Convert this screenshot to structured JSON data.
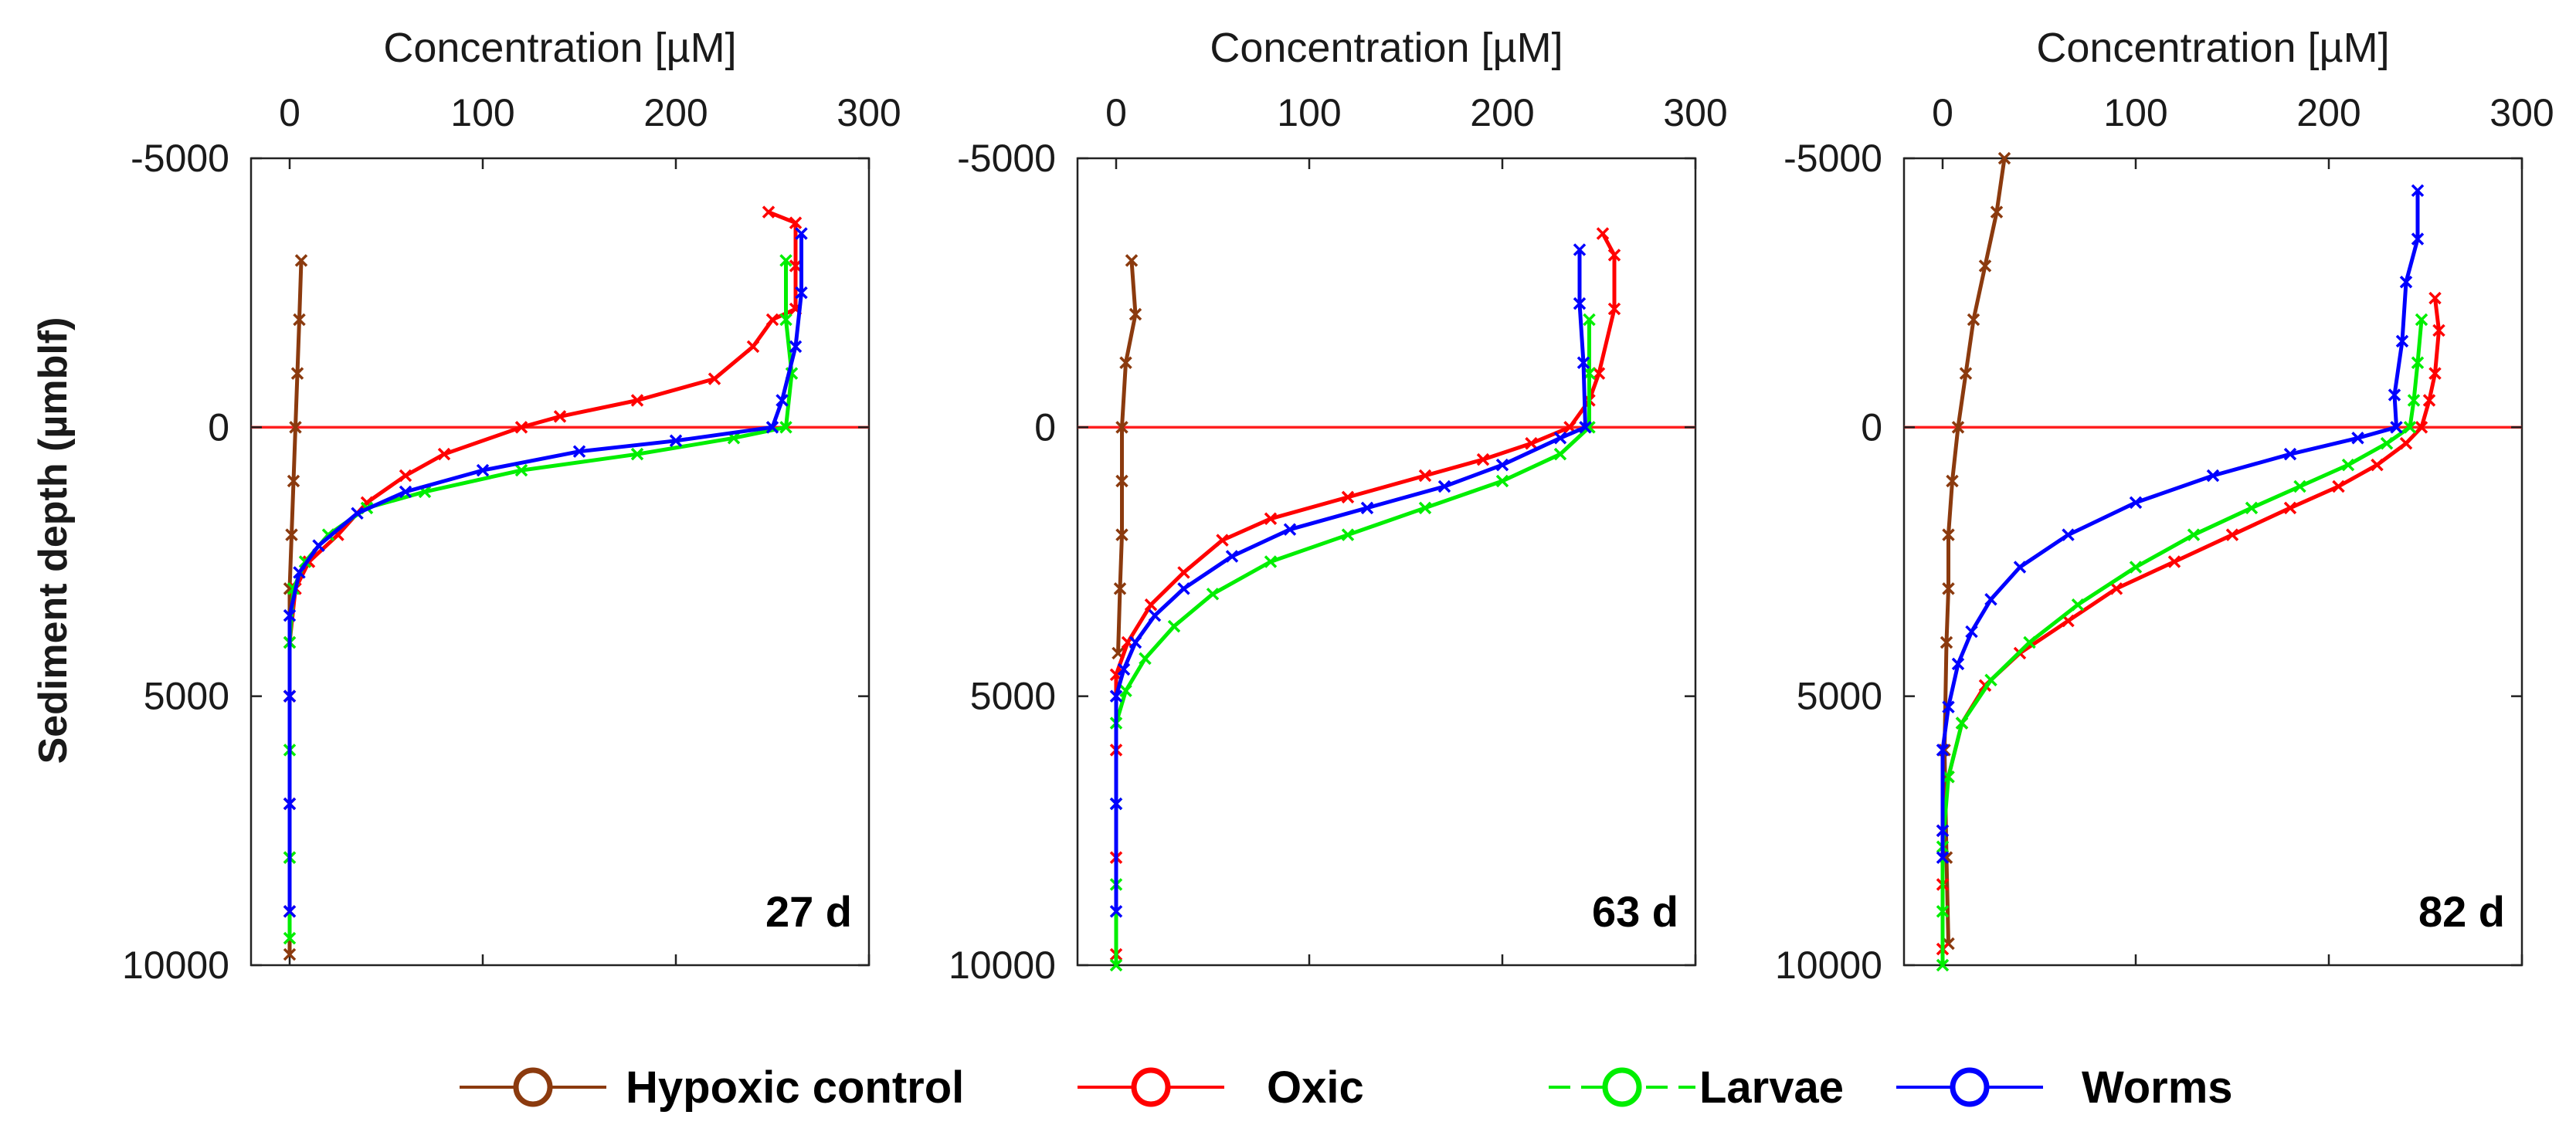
{
  "chart_data": {
    "type": "line",
    "ylabel": "Sediment depth (µmblf)",
    "xlabel": "Concentration [µM]",
    "xlim": [
      -20,
      300
    ],
    "ylim": [
      -5000,
      10000
    ],
    "y_inverted": true,
    "xticks": [
      0,
      100,
      200,
      300
    ],
    "yticks": [
      -5000,
      0,
      5000,
      10000
    ],
    "reference_line": {
      "y": 0,
      "color": "#ff2020"
    },
    "legend": {
      "position": "bottom",
      "entries": [
        {
          "name": "Hypoxic control",
          "color": "#8b3a0e",
          "style": "solid"
        },
        {
          "name": "Oxic",
          "color": "#ff0000",
          "style": "solid"
        },
        {
          "name": "Larvae",
          "color": "#00ee00",
          "style": "dashed"
        },
        {
          "name": "Worms",
          "color": "#0000ff",
          "style": "solid"
        }
      ]
    },
    "panels": [
      {
        "label": "27 d",
        "series": [
          {
            "name": "Hypoxic control",
            "color": "#8b3a0e",
            "points": [
              [
                6,
                -3100
              ],
              [
                5,
                -2000
              ],
              [
                4,
                -1000
              ],
              [
                3,
                0
              ],
              [
                2,
                1000
              ],
              [
                1,
                2000
              ],
              [
                0,
                3000
              ],
              [
                0,
                5000
              ],
              [
                0,
                8000
              ],
              [
                0,
                9800
              ]
            ]
          },
          {
            "name": "Oxic",
            "color": "#ff0000",
            "points": [
              [
                248,
                -4000
              ],
              [
                262,
                -3800
              ],
              [
                262,
                -3000
              ],
              [
                262,
                -2200
              ],
              [
                250,
                -2000
              ],
              [
                240,
                -1500
              ],
              [
                220,
                -900
              ],
              [
                180,
                -500
              ],
              [
                140,
                -200
              ],
              [
                120,
                0
              ],
              [
                80,
                500
              ],
              [
                60,
                900
              ],
              [
                40,
                1400
              ],
              [
                25,
                2000
              ],
              [
                10,
                2500
              ],
              [
                3,
                3000
              ],
              [
                0,
                4000
              ],
              [
                0,
                5000
              ],
              [
                0,
                7000
              ],
              [
                0,
                9000
              ]
            ]
          },
          {
            "name": "Larvae",
            "color": "#00ee00",
            "points": [
              [
                257,
                -3100
              ],
              [
                257,
                -2000
              ],
              [
                260,
                -1000
              ],
              [
                257,
                0
              ],
              [
                230,
                200
              ],
              [
                180,
                500
              ],
              [
                120,
                800
              ],
              [
                70,
                1200
              ],
              [
                40,
                1500
              ],
              [
                20,
                2000
              ],
              [
                8,
                2500
              ],
              [
                2,
                3000
              ],
              [
                0,
                4000
              ],
              [
                0,
                6000
              ],
              [
                0,
                8000
              ],
              [
                0,
                9500
              ]
            ]
          },
          {
            "name": "Worms",
            "color": "#0000ff",
            "points": [
              [
                265,
                -3600
              ],
              [
                265,
                -2500
              ],
              [
                262,
                -1500
              ],
              [
                255,
                -500
              ],
              [
                250,
                0
              ],
              [
                200,
                250
              ],
              [
                150,
                450
              ],
              [
                100,
                800
              ],
              [
                60,
                1200
              ],
              [
                35,
                1600
              ],
              [
                15,
                2200
              ],
              [
                5,
                2700
              ],
              [
                0,
                3500
              ],
              [
                0,
                5000
              ],
              [
                0,
                7000
              ],
              [
                0,
                9000
              ]
            ]
          }
        ]
      },
      {
        "label": "63 d",
        "series": [
          {
            "name": "Hypoxic control",
            "color": "#8b3a0e",
            "points": [
              [
                8,
                -3100
              ],
              [
                10,
                -2100
              ],
              [
                5,
                -1200
              ],
              [
                3,
                0
              ],
              [
                3,
                1000
              ],
              [
                3,
                2000
              ],
              [
                2,
                3000
              ],
              [
                1,
                4200
              ]
            ]
          },
          {
            "name": "Oxic",
            "color": "#ff0000",
            "points": [
              [
                252,
                -3600
              ],
              [
                258,
                -3200
              ],
              [
                258,
                -2200
              ],
              [
                250,
                -1000
              ],
              [
                245,
                -500
              ],
              [
                235,
                0
              ],
              [
                215,
                300
              ],
              [
                190,
                600
              ],
              [
                160,
                900
              ],
              [
                120,
                1300
              ],
              [
                80,
                1700
              ],
              [
                55,
                2100
              ],
              [
                35,
                2700
              ],
              [
                18,
                3300
              ],
              [
                6,
                4000
              ],
              [
                0,
                4600
              ],
              [
                0,
                6000
              ],
              [
                0,
                8000
              ],
              [
                0,
                9800
              ]
            ]
          },
          {
            "name": "Larvae",
            "color": "#00ee00",
            "points": [
              [
                245,
                -2000
              ],
              [
                245,
                -1000
              ],
              [
                245,
                0
              ],
              [
                230,
                500
              ],
              [
                200,
                1000
              ],
              [
                160,
                1500
              ],
              [
                120,
                2000
              ],
              [
                80,
                2500
              ],
              [
                50,
                3100
              ],
              [
                30,
                3700
              ],
              [
                15,
                4300
              ],
              [
                5,
                4900
              ],
              [
                0,
                5500
              ],
              [
                0,
                7000
              ],
              [
                0,
                8500
              ],
              [
                0,
                10000
              ]
            ]
          },
          {
            "name": "Worms",
            "color": "#0000ff",
            "points": [
              [
                240,
                -3300
              ],
              [
                240,
                -2300
              ],
              [
                242,
                -1200
              ],
              [
                243,
                0
              ],
              [
                230,
                200
              ],
              [
                200,
                700
              ],
              [
                170,
                1100
              ],
              [
                130,
                1500
              ],
              [
                90,
                1900
              ],
              [
                60,
                2400
              ],
              [
                35,
                3000
              ],
              [
                20,
                3500
              ],
              [
                10,
                4000
              ],
              [
                4,
                4500
              ],
              [
                0,
                5000
              ],
              [
                0,
                7000
              ],
              [
                0,
                9000
              ]
            ]
          }
        ]
      },
      {
        "label": "82 d",
        "series": [
          {
            "name": "Hypoxic control",
            "color": "#8b3a0e",
            "points": [
              [
                32,
                -5000
              ],
              [
                28,
                -4000
              ],
              [
                22,
                -3000
              ],
              [
                16,
                -2000
              ],
              [
                12,
                -1000
              ],
              [
                8,
                0
              ],
              [
                5,
                1000
              ],
              [
                3,
                2000
              ],
              [
                3,
                3000
              ],
              [
                2,
                4000
              ],
              [
                1,
                6000
              ],
              [
                2,
                8000
              ],
              [
                3,
                9600
              ]
            ]
          },
          {
            "name": "Oxic",
            "color": "#ff0000",
            "points": [
              [
                255,
                -2400
              ],
              [
                257,
                -1800
              ],
              [
                255,
                -1000
              ],
              [
                252,
                -500
              ],
              [
                248,
                0
              ],
              [
                240,
                300
              ],
              [
                225,
                700
              ],
              [
                205,
                1100
              ],
              [
                180,
                1500
              ],
              [
                150,
                2000
              ],
              [
                120,
                2500
              ],
              [
                90,
                3000
              ],
              [
                65,
                3600
              ],
              [
                40,
                4200
              ],
              [
                22,
                4800
              ],
              [
                10,
                5500
              ],
              [
                3,
                6500
              ],
              [
                0,
                7500
              ],
              [
                0,
                8500
              ],
              [
                0,
                9700
              ]
            ]
          },
          {
            "name": "Larvae",
            "color": "#00ee00",
            "points": [
              [
                248,
                -2000
              ],
              [
                246,
                -1200
              ],
              [
                244,
                -500
              ],
              [
                242,
                0
              ],
              [
                230,
                300
              ],
              [
                210,
                700
              ],
              [
                185,
                1100
              ],
              [
                160,
                1500
              ],
              [
                130,
                2000
              ],
              [
                100,
                2600
              ],
              [
                70,
                3300
              ],
              [
                45,
                4000
              ],
              [
                25,
                4700
              ],
              [
                10,
                5500
              ],
              [
                3,
                6500
              ],
              [
                0,
                7800
              ],
              [
                0,
                9000
              ],
              [
                0,
                10000
              ]
            ]
          },
          {
            "name": "Worms",
            "color": "#0000ff",
            "points": [
              [
                246,
                -4400
              ],
              [
                246,
                -3500
              ],
              [
                240,
                -2700
              ],
              [
                238,
                -1600
              ],
              [
                234,
                -600
              ],
              [
                235,
                0
              ],
              [
                215,
                200
              ],
              [
                180,
                500
              ],
              [
                140,
                900
              ],
              [
                100,
                1400
              ],
              [
                65,
                2000
              ],
              [
                40,
                2600
              ],
              [
                25,
                3200
              ],
              [
                15,
                3800
              ],
              [
                8,
                4400
              ],
              [
                3,
                5200
              ],
              [
                0,
                6000
              ],
              [
                0,
                7500
              ],
              [
                0,
                8000
              ]
            ]
          }
        ]
      }
    ]
  }
}
